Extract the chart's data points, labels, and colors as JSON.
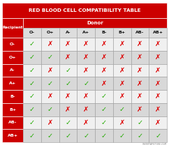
{
  "title": "RED BLOOD CELL COMPATIBILITY TABLE",
  "donor_label": "Donor",
  "recipient_label": "Recipient",
  "donors": [
    "O-",
    "O+",
    "A-",
    "A+",
    "B-",
    "B+",
    "AB-",
    "AB+"
  ],
  "recipients": [
    "O-",
    "O+",
    "A-",
    "A+",
    "B-",
    "B+",
    "AB-",
    "AB+"
  ],
  "compatibility": [
    [
      1,
      0,
      0,
      0,
      0,
      0,
      0,
      0
    ],
    [
      1,
      1,
      0,
      0,
      0,
      0,
      0,
      0
    ],
    [
      1,
      0,
      1,
      0,
      0,
      0,
      0,
      0
    ],
    [
      1,
      1,
      1,
      1,
      0,
      0,
      0,
      0
    ],
    [
      1,
      0,
      0,
      0,
      1,
      0,
      0,
      0
    ],
    [
      1,
      1,
      0,
      0,
      1,
      1,
      0,
      0
    ],
    [
      1,
      0,
      1,
      0,
      1,
      0,
      1,
      0
    ],
    [
      1,
      1,
      1,
      1,
      1,
      1,
      1,
      1
    ]
  ],
  "title_bg": "#cc0000",
  "title_color": "white",
  "donor_header_bg": "#cc0000",
  "donor_header_color": "white",
  "recipient_col_bg": "#cc0000",
  "recipient_col_color": "white",
  "donor_row_bg": "#dddddd",
  "donor_row_color": "#111111",
  "odd_row_bg": "#f0f0f0",
  "even_row_bg": "#d8d8d8",
  "check_color": "#22aa00",
  "cross_color": "#dd0000",
  "outer_bg": "#ffffff",
  "border_color": "#999999",
  "watermark": "THEMETAPICTURE.COM"
}
